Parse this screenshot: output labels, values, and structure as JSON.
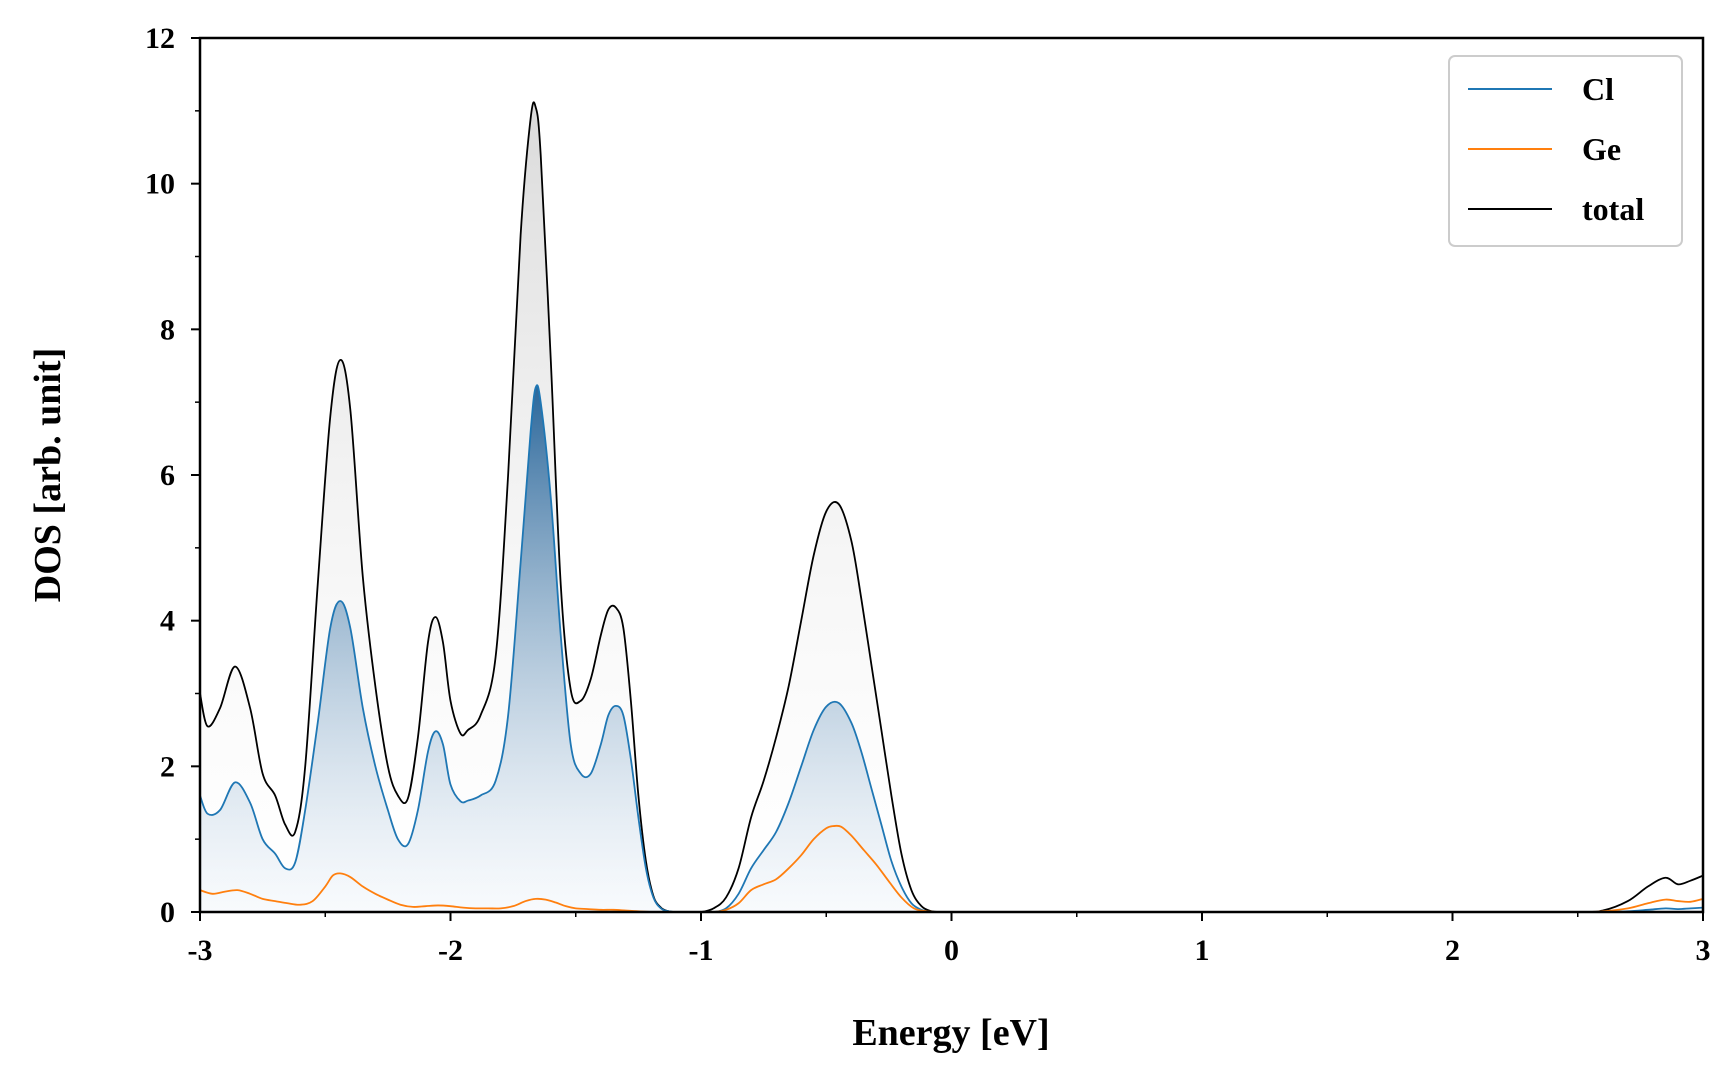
{
  "chart_data": {
    "type": "area",
    "title": "",
    "xlabel": "Energy [eV]",
    "ylabel": "DOS [arb. unit]",
    "xlim": [
      -3,
      3
    ],
    "ylim": [
      0,
      12
    ],
    "xticks": [
      -3,
      -2,
      -1,
      0,
      1,
      2,
      3
    ],
    "xtick_labels": [
      "-3",
      "-2",
      "-1",
      "0",
      "1",
      "2",
      "3"
    ],
    "yticks": [
      0,
      2,
      4,
      6,
      8,
      10,
      12
    ],
    "ytick_labels": [
      "0",
      "2",
      "4",
      "6",
      "8",
      "10",
      "12"
    ],
    "grid": false,
    "legend_position": "top-right",
    "series": [
      {
        "name": "Cl",
        "color": "#1f77b4",
        "fill": "blue-gradient",
        "x": [
          -3.0,
          -2.97,
          -2.92,
          -2.86,
          -2.8,
          -2.75,
          -2.7,
          -2.66,
          -2.62,
          -2.58,
          -2.53,
          -2.48,
          -2.44,
          -2.4,
          -2.35,
          -2.3,
          -2.25,
          -2.21,
          -2.17,
          -2.13,
          -2.09,
          -2.06,
          -2.03,
          -2.0,
          -1.96,
          -1.93,
          -1.88,
          -1.82,
          -1.77,
          -1.72,
          -1.68,
          -1.66,
          -1.64,
          -1.6,
          -1.56,
          -1.52,
          -1.48,
          -1.44,
          -1.4,
          -1.37,
          -1.34,
          -1.31,
          -1.28,
          -1.25,
          -1.22,
          -1.19,
          -1.16,
          -1.13,
          -1.1,
          -1.05,
          -1.0,
          -0.95,
          -0.9,
          -0.85,
          -0.8,
          -0.75,
          -0.7,
          -0.65,
          -0.6,
          -0.55,
          -0.5,
          -0.45,
          -0.4,
          -0.36,
          -0.32,
          -0.28,
          -0.24,
          -0.2,
          -0.16,
          -0.12,
          -0.08,
          -0.04,
          0.0,
          0.5,
          1.0,
          1.5,
          2.0,
          2.5,
          2.6,
          2.7,
          2.78,
          2.85,
          2.9,
          2.95,
          3.0
        ],
        "values": [
          1.6,
          1.35,
          1.4,
          1.78,
          1.5,
          1.0,
          0.8,
          0.6,
          0.68,
          1.4,
          2.6,
          3.9,
          4.27,
          3.9,
          2.8,
          2.0,
          1.4,
          1.0,
          0.93,
          1.4,
          2.2,
          2.48,
          2.3,
          1.75,
          1.52,
          1.53,
          1.6,
          1.8,
          2.7,
          4.8,
          6.6,
          7.2,
          7.0,
          5.7,
          3.8,
          2.3,
          1.9,
          1.9,
          2.3,
          2.7,
          2.83,
          2.7,
          2.1,
          1.3,
          0.6,
          0.2,
          0.05,
          0.01,
          0.0,
          0.0,
          0.0,
          0.0,
          0.05,
          0.25,
          0.6,
          0.85,
          1.1,
          1.5,
          2.0,
          2.5,
          2.82,
          2.87,
          2.6,
          2.2,
          1.7,
          1.2,
          0.7,
          0.35,
          0.12,
          0.03,
          0.0,
          0.0,
          0.0,
          0.0,
          0.0,
          0.0,
          0.0,
          0.0,
          0.0,
          0.01,
          0.03,
          0.05,
          0.04,
          0.05,
          0.06
        ]
      },
      {
        "name": "Ge",
        "color": "#ff7f0e",
        "x": [
          -3.0,
          -2.95,
          -2.9,
          -2.85,
          -2.8,
          -2.75,
          -2.7,
          -2.65,
          -2.6,
          -2.55,
          -2.5,
          -2.47,
          -2.44,
          -2.4,
          -2.35,
          -2.3,
          -2.25,
          -2.2,
          -2.15,
          -2.1,
          -2.05,
          -2.0,
          -1.95,
          -1.9,
          -1.85,
          -1.8,
          -1.75,
          -1.7,
          -1.66,
          -1.62,
          -1.58,
          -1.54,
          -1.5,
          -1.45,
          -1.4,
          -1.35,
          -1.3,
          -1.25,
          -1.2,
          -1.15,
          -1.1,
          -1.05,
          -1.0,
          -0.95,
          -0.9,
          -0.85,
          -0.8,
          -0.75,
          -0.7,
          -0.65,
          -0.6,
          -0.55,
          -0.5,
          -0.47,
          -0.44,
          -0.4,
          -0.35,
          -0.3,
          -0.25,
          -0.2,
          -0.15,
          -0.1,
          -0.05,
          0.0,
          0.5,
          1.0,
          1.5,
          2.0,
          2.5,
          2.6,
          2.7,
          2.78,
          2.85,
          2.9,
          2.95,
          3.0
        ],
        "values": [
          0.3,
          0.25,
          0.28,
          0.3,
          0.25,
          0.18,
          0.15,
          0.12,
          0.1,
          0.15,
          0.35,
          0.5,
          0.53,
          0.48,
          0.35,
          0.25,
          0.17,
          0.1,
          0.07,
          0.08,
          0.09,
          0.08,
          0.06,
          0.05,
          0.05,
          0.05,
          0.08,
          0.15,
          0.18,
          0.17,
          0.13,
          0.08,
          0.05,
          0.04,
          0.03,
          0.03,
          0.02,
          0.01,
          0.0,
          0.0,
          0.0,
          0.0,
          0.0,
          0.0,
          0.03,
          0.12,
          0.3,
          0.38,
          0.45,
          0.6,
          0.78,
          1.0,
          1.15,
          1.18,
          1.17,
          1.05,
          0.85,
          0.65,
          0.42,
          0.2,
          0.05,
          0.01,
          0.0,
          0.0,
          0.0,
          0.0,
          0.0,
          0.0,
          0.0,
          0.01,
          0.05,
          0.12,
          0.17,
          0.15,
          0.14,
          0.18
        ]
      },
      {
        "name": "total",
        "color": "#000000",
        "fill": "gray-gradient",
        "x": [
          -3.0,
          -2.97,
          -2.92,
          -2.86,
          -2.8,
          -2.75,
          -2.7,
          -2.66,
          -2.62,
          -2.58,
          -2.53,
          -2.48,
          -2.44,
          -2.4,
          -2.35,
          -2.3,
          -2.25,
          -2.21,
          -2.17,
          -2.13,
          -2.09,
          -2.06,
          -2.03,
          -2.0,
          -1.96,
          -1.93,
          -1.88,
          -1.82,
          -1.77,
          -1.72,
          -1.68,
          -1.66,
          -1.64,
          -1.6,
          -1.56,
          -1.52,
          -1.48,
          -1.44,
          -1.4,
          -1.37,
          -1.34,
          -1.31,
          -1.28,
          -1.25,
          -1.22,
          -1.19,
          -1.16,
          -1.13,
          -1.1,
          -1.05,
          -1.0,
          -0.95,
          -0.9,
          -0.85,
          -0.8,
          -0.75,
          -0.7,
          -0.65,
          -0.6,
          -0.55,
          -0.5,
          -0.45,
          -0.4,
          -0.36,
          -0.32,
          -0.28,
          -0.24,
          -0.2,
          -0.16,
          -0.12,
          -0.08,
          -0.04,
          0.0,
          0.5,
          1.0,
          1.5,
          2.0,
          2.5,
          2.6,
          2.7,
          2.78,
          2.85,
          2.9,
          2.95,
          3.0
        ],
        "values": [
          3.0,
          2.55,
          2.8,
          3.37,
          2.8,
          1.9,
          1.6,
          1.2,
          1.1,
          2.0,
          4.5,
          6.8,
          7.58,
          6.9,
          4.6,
          3.1,
          2.0,
          1.6,
          1.56,
          2.4,
          3.7,
          4.05,
          3.7,
          2.9,
          2.45,
          2.5,
          2.7,
          3.5,
          6.0,
          9.3,
          10.9,
          11.05,
          10.4,
          7.6,
          4.5,
          3.05,
          2.9,
          3.2,
          3.8,
          4.15,
          4.18,
          3.9,
          2.9,
          1.6,
          0.7,
          0.22,
          0.06,
          0.01,
          0.0,
          0.0,
          0.0,
          0.05,
          0.2,
          0.6,
          1.3,
          1.8,
          2.4,
          3.1,
          4.0,
          4.9,
          5.5,
          5.6,
          5.1,
          4.3,
          3.4,
          2.5,
          1.6,
          0.8,
          0.3,
          0.08,
          0.01,
          0.0,
          0.0,
          0.0,
          0.0,
          0.0,
          0.0,
          0.0,
          0.02,
          0.15,
          0.35,
          0.47,
          0.38,
          0.43,
          0.5
        ]
      }
    ]
  }
}
